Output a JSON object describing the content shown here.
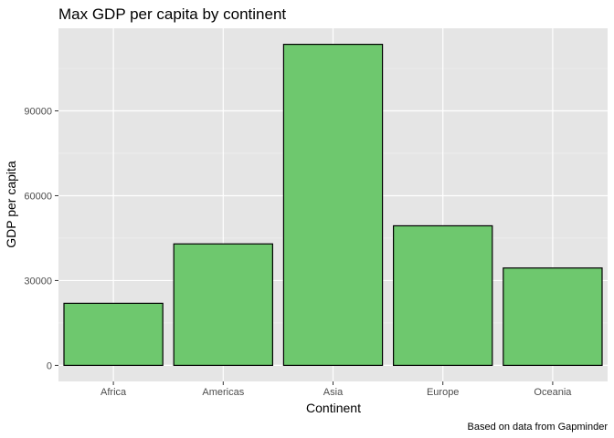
{
  "chart_data": {
    "type": "bar",
    "title": "Max GDP per capita by continent",
    "xlabel": "Continent",
    "ylabel": "GDP per capita",
    "caption": "Based on data from Gapminder",
    "categories": [
      "Africa",
      "Americas",
      "Asia",
      "Europe",
      "Oceania"
    ],
    "values": [
      21951,
      42952,
      113523,
      49357,
      34435
    ],
    "ylim": [
      -5676,
      119199
    ],
    "yticks": [
      0,
      30000,
      60000,
      90000
    ],
    "ytick_labels": [
      "0",
      "30000",
      "60000",
      "90000"
    ],
    "grid": true,
    "colors": {
      "bar_fill": "#6ec86e",
      "bar_stroke": "#000000",
      "panel": "#e5e5e5",
      "grid_major": "#ffffff",
      "grid_minor": "#f0f0f0"
    }
  }
}
